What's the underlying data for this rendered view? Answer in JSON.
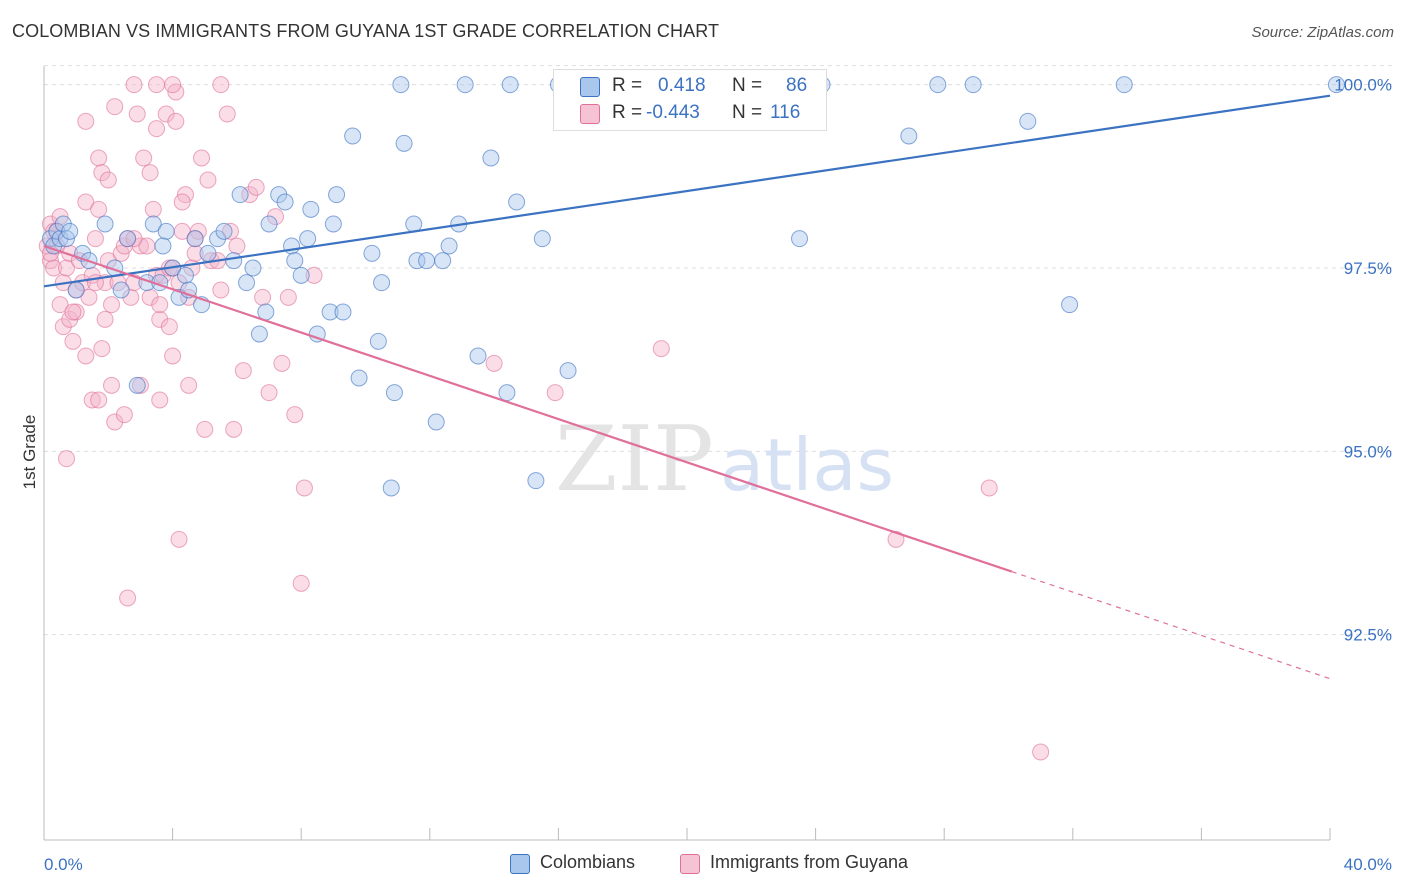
{
  "title": "COLOMBIAN VS IMMIGRANTS FROM GUYANA 1ST GRADE CORRELATION CHART",
  "source": "Source: ZipAtlas.com",
  "colors": {
    "blue": "#3b72c2",
    "blue_fill": "#a9c6ec",
    "pink": "#e0709a",
    "pink_fill": "#f5b3c9",
    "grid": "#dddddd"
  },
  "legend": {
    "rows": [
      {
        "r_label": "R =",
        "r_value": "0.418",
        "n_label": "N =",
        "n_value": "86"
      },
      {
        "r_label": "R =",
        "r_value": "-0.443",
        "n_label": "N =",
        "n_value": "116"
      }
    ]
  },
  "bottom_legend": [
    "Colombians",
    "Immigrants from Guyana"
  ],
  "chart_data": {
    "type": "scatter",
    "ylabel": "1st Grade",
    "xlabel": "",
    "xlim": [
      0,
      40
    ],
    "ylim": [
      89.7,
      100.2
    ],
    "x_tick_labels": [
      "0.0%",
      "40.0%"
    ],
    "y_ticks": [
      92.5,
      95.0,
      97.5,
      100.0
    ],
    "y_tick_labels": [
      "92.5%",
      "95.0%",
      "97.5%",
      "100.0%"
    ],
    "grid": true,
    "series": [
      {
        "name": "Colombians",
        "color": "#3b72c2",
        "trend": {
          "x": [
            0,
            40
          ],
          "y": [
            97.25,
            99.85
          ],
          "dashed_from": null
        },
        "points": [
          [
            0.2,
            97.9
          ],
          [
            0.3,
            97.8
          ],
          [
            0.4,
            98.0
          ],
          [
            0.5,
            97.9
          ],
          [
            0.6,
            98.1
          ],
          [
            0.7,
            97.9
          ],
          [
            0.8,
            98.0
          ],
          [
            1.0,
            97.2
          ],
          [
            1.2,
            97.7
          ],
          [
            1.4,
            97.6
          ],
          [
            1.9,
            98.1
          ],
          [
            2.2,
            97.5
          ],
          [
            2.4,
            97.2
          ],
          [
            2.6,
            97.9
          ],
          [
            2.9,
            95.9
          ],
          [
            3.2,
            97.3
          ],
          [
            3.4,
            98.1
          ],
          [
            3.6,
            97.3
          ],
          [
            3.8,
            98.0
          ],
          [
            4.0,
            97.5
          ],
          [
            4.2,
            97.1
          ],
          [
            4.4,
            97.4
          ],
          [
            4.5,
            97.2
          ],
          [
            4.7,
            97.9
          ],
          [
            4.9,
            97.0
          ],
          [
            5.1,
            97.7
          ],
          [
            5.4,
            97.9
          ],
          [
            5.6,
            98.0
          ],
          [
            5.9,
            97.6
          ],
          [
            6.1,
            98.5
          ],
          [
            6.3,
            97.3
          ],
          [
            6.5,
            97.5
          ],
          [
            6.7,
            96.6
          ],
          [
            6.9,
            96.9
          ],
          [
            7.0,
            98.1
          ],
          [
            7.3,
            98.5
          ],
          [
            7.5,
            98.4
          ],
          [
            7.7,
            97.8
          ],
          [
            7.8,
            97.6
          ],
          [
            8.0,
            97.4
          ],
          [
            8.2,
            97.9
          ],
          [
            8.3,
            98.3
          ],
          [
            8.5,
            96.6
          ],
          [
            8.9,
            96.9
          ],
          [
            9.0,
            98.1
          ],
          [
            9.1,
            98.5
          ],
          [
            9.3,
            96.9
          ],
          [
            9.6,
            99.3
          ],
          [
            9.8,
            96.0
          ],
          [
            10.2,
            97.7
          ],
          [
            10.4,
            96.5
          ],
          [
            10.5,
            97.3
          ],
          [
            10.9,
            95.8
          ],
          [
            11.2,
            99.2
          ],
          [
            11.5,
            98.1
          ],
          [
            11.6,
            97.6
          ],
          [
            11.9,
            97.6
          ],
          [
            12.2,
            95.4
          ],
          [
            12.4,
            97.6
          ],
          [
            12.6,
            97.8
          ],
          [
            12.9,
            98.1
          ],
          [
            13.5,
            96.3
          ],
          [
            13.9,
            99.0
          ],
          [
            14.4,
            95.8
          ],
          [
            14.7,
            98.4
          ],
          [
            15.3,
            94.6
          ],
          [
            15.5,
            97.9
          ],
          [
            16.3,
            96.1
          ],
          [
            17.5,
            100.0
          ],
          [
            11.1,
            100.0
          ],
          [
            13.1,
            100.0
          ],
          [
            14.5,
            100.0
          ],
          [
            16.0,
            100.0
          ],
          [
            18.3,
            100.0
          ],
          [
            19.0,
            100.0
          ],
          [
            24.2,
            100.0
          ],
          [
            27.8,
            100.0
          ],
          [
            28.9,
            100.0
          ],
          [
            33.6,
            100.0
          ],
          [
            40.2,
            100.0
          ],
          [
            26.9,
            99.3
          ],
          [
            23.5,
            97.9
          ],
          [
            30.6,
            99.5
          ],
          [
            31.9,
            97.0
          ],
          [
            10.8,
            94.5
          ],
          [
            3.7,
            97.8
          ]
        ]
      },
      {
        "name": "Immigrants from Guyana",
        "color": "#e0709a",
        "trend": {
          "x": [
            0,
            40
          ],
          "y": [
            97.8,
            91.9
          ],
          "dashed_from": 30.1
        },
        "points": [
          [
            0.1,
            97.8
          ],
          [
            0.2,
            98.1
          ],
          [
            0.2,
            97.6
          ],
          [
            0.3,
            98.0
          ],
          [
            0.3,
            97.5
          ],
          [
            0.4,
            97.8
          ],
          [
            0.5,
            98.2
          ],
          [
            0.5,
            97.0
          ],
          [
            0.6,
            97.3
          ],
          [
            0.6,
            96.7
          ],
          [
            0.7,
            97.5
          ],
          [
            0.7,
            94.9
          ],
          [
            0.8,
            96.8
          ],
          [
            0.8,
            97.7
          ],
          [
            0.9,
            96.5
          ],
          [
            1.0,
            97.2
          ],
          [
            1.0,
            96.9
          ],
          [
            1.1,
            97.6
          ],
          [
            1.2,
            97.3
          ],
          [
            1.3,
            98.4
          ],
          [
            1.3,
            96.3
          ],
          [
            1.4,
            97.1
          ],
          [
            1.5,
            97.4
          ],
          [
            1.5,
            95.7
          ],
          [
            1.6,
            97.9
          ],
          [
            1.7,
            99.0
          ],
          [
            1.7,
            95.7
          ],
          [
            1.8,
            96.4
          ],
          [
            1.8,
            98.8
          ],
          [
            1.9,
            96.8
          ],
          [
            1.9,
            97.3
          ],
          [
            2.0,
            98.7
          ],
          [
            2.0,
            97.6
          ],
          [
            2.1,
            97.0
          ],
          [
            2.1,
            95.9
          ],
          [
            2.2,
            95.4
          ],
          [
            2.3,
            97.3
          ],
          [
            2.4,
            97.7
          ],
          [
            2.5,
            95.5
          ],
          [
            2.5,
            97.8
          ],
          [
            2.6,
            97.9
          ],
          [
            2.6,
            93.0
          ],
          [
            2.7,
            97.1
          ],
          [
            2.8,
            97.3
          ],
          [
            2.9,
            99.6
          ],
          [
            3.0,
            97.8
          ],
          [
            3.0,
            95.9
          ],
          [
            3.1,
            99.0
          ],
          [
            3.2,
            97.8
          ],
          [
            3.3,
            97.1
          ],
          [
            3.4,
            98.3
          ],
          [
            3.5,
            97.4
          ],
          [
            3.5,
            99.4
          ],
          [
            3.6,
            96.8
          ],
          [
            3.6,
            95.7
          ],
          [
            3.7,
            97.4
          ],
          [
            3.8,
            99.6
          ],
          [
            3.9,
            97.5
          ],
          [
            3.9,
            96.7
          ],
          [
            4.0,
            97.5
          ],
          [
            4.0,
            96.3
          ],
          [
            4.1,
            99.9
          ],
          [
            4.2,
            97.3
          ],
          [
            4.2,
            93.8
          ],
          [
            4.3,
            98.0
          ],
          [
            4.4,
            98.5
          ],
          [
            4.5,
            97.1
          ],
          [
            4.5,
            95.9
          ],
          [
            4.6,
            97.5
          ],
          [
            4.7,
            97.7
          ],
          [
            4.8,
            98.0
          ],
          [
            4.9,
            99.0
          ],
          [
            5.0,
            95.3
          ],
          [
            5.1,
            98.7
          ],
          [
            5.2,
            97.6
          ],
          [
            5.4,
            97.6
          ],
          [
            5.5,
            97.2
          ],
          [
            5.7,
            99.6
          ],
          [
            5.8,
            98.0
          ],
          [
            5.9,
            95.3
          ],
          [
            6.0,
            97.8
          ],
          [
            6.2,
            96.1
          ],
          [
            6.4,
            98.5
          ],
          [
            6.6,
            98.6
          ],
          [
            6.8,
            97.1
          ],
          [
            7.0,
            95.8
          ],
          [
            7.2,
            98.2
          ],
          [
            7.4,
            96.2
          ],
          [
            7.6,
            97.1
          ],
          [
            7.8,
            95.5
          ],
          [
            8.0,
            93.2
          ],
          [
            8.1,
            94.5
          ],
          [
            8.4,
            97.4
          ],
          [
            14.0,
            96.2
          ],
          [
            15.9,
            95.8
          ],
          [
            19.2,
            96.4
          ],
          [
            26.5,
            93.8
          ],
          [
            29.4,
            94.5
          ],
          [
            31.0,
            90.9
          ],
          [
            2.8,
            100.0
          ],
          [
            3.5,
            100.0
          ],
          [
            4.0,
            100.0
          ],
          [
            3.3,
            98.8
          ],
          [
            5.5,
            100.0
          ],
          [
            1.3,
            99.5
          ],
          [
            2.2,
            99.7
          ],
          [
            4.1,
            99.5
          ],
          [
            1.7,
            98.3
          ],
          [
            4.3,
            98.4
          ],
          [
            2.8,
            97.9
          ],
          [
            0.4,
            98.0
          ],
          [
            0.9,
            96.9
          ],
          [
            1.6,
            97.3
          ],
          [
            0.2,
            97.7
          ],
          [
            3.6,
            97.0
          ],
          [
            4.7,
            97.9
          ]
        ]
      }
    ]
  }
}
